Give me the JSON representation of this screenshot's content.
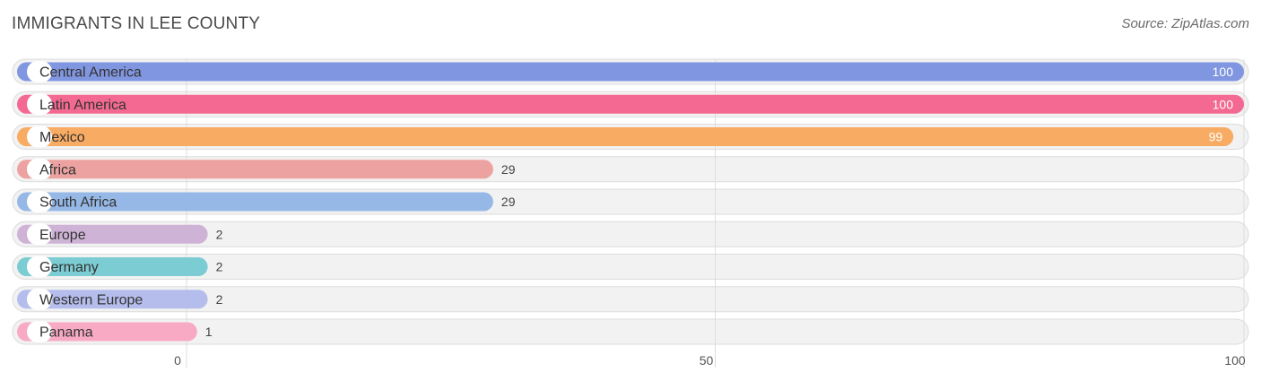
{
  "title": "IMMIGRANTS IN LEE COUNTY",
  "source": "Source: ZipAtlas.com",
  "chart_data": {
    "type": "bar",
    "orientation": "horizontal",
    "title": "IMMIGRANTS IN LEE COUNTY",
    "categories": [
      "Central America",
      "Latin America",
      "Mexico",
      "Africa",
      "South Africa",
      "Europe",
      "Germany",
      "Western Europe",
      "Panama"
    ],
    "values": [
      100,
      100,
      99,
      29,
      29,
      2,
      2,
      2,
      1
    ],
    "value_labels": [
      "100",
      "100",
      "99",
      "29",
      "29",
      "2",
      "2",
      "2",
      "1"
    ],
    "colors": [
      "#8196e0",
      "#f36991",
      "#f8ab62",
      "#eca2a0",
      "#96b8e6",
      "#ceb3d6",
      "#7ccdd3",
      "#b5bdec",
      "#f8aac4"
    ],
    "xlim": [
      0,
      100
    ],
    "xticks": [
      0,
      50,
      100
    ],
    "tick_labels": [
      "0",
      "50",
      "100"
    ],
    "xlabel": "",
    "ylabel": "",
    "grid": true
  }
}
